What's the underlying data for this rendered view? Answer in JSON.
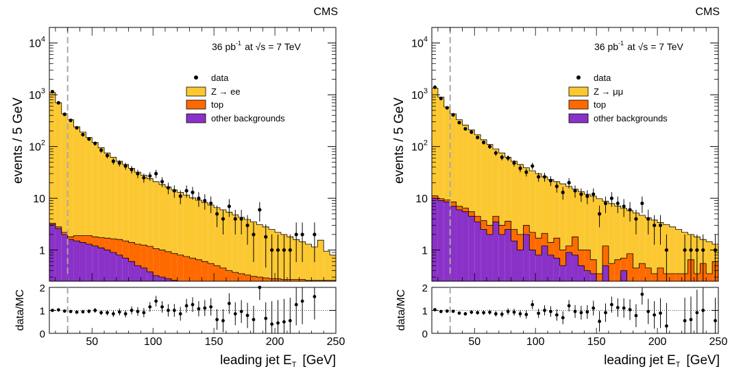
{
  "colors": {
    "signal": "#fcc832",
    "top": "#ff6a00",
    "other": "#8a32c8",
    "data": "#000000",
    "cut": "#a8a8a8"
  },
  "chart_data": [
    {
      "type": "histogram",
      "experiment": "CMS",
      "lumi_text": "36 pb",
      "lumi_sup": "-1",
      "energy_text": "at √s = 7 TeV",
      "ylabel": "events / 5 GeV",
      "xlabel_main": "leading jet E",
      "xlabel_sub": "T",
      "xlabel_unit": "[GeV]",
      "ratio_ylabel": "data/MC",
      "xlim": [
        15,
        250
      ],
      "ylim": [
        0.25,
        20000
      ],
      "yscale": "log",
      "ratio_ylim": [
        0,
        2
      ],
      "cut_x": 30,
      "bin_width": 5,
      "x_ticks": [
        "50",
        "100",
        "150",
        "200",
        "250"
      ],
      "y_ticks": [
        {
          "base": "10",
          "exp": "4"
        },
        {
          "base": "10",
          "exp": "3"
        },
        {
          "base": "10",
          "exp": "2"
        },
        {
          "base": "10",
          "exp": ""
        },
        {
          "base": "1",
          "exp": ""
        }
      ],
      "ratio_ticks": [
        "0",
        "1",
        "2"
      ],
      "legend": {
        "data": "data",
        "signal": "Z → ee",
        "top": "top",
        "other": "other backgrounds"
      },
      "bin_low_edges": [
        15,
        20,
        25,
        30,
        35,
        40,
        45,
        50,
        55,
        60,
        65,
        70,
        75,
        80,
        85,
        90,
        95,
        100,
        105,
        110,
        115,
        120,
        125,
        130,
        135,
        140,
        145,
        150,
        155,
        160,
        165,
        170,
        175,
        180,
        185,
        190,
        195,
        200,
        205,
        210,
        215,
        220,
        225,
        230,
        235,
        240,
        245
      ],
      "other": [
        3.1,
        2.6,
        2.0,
        1.6,
        1.5,
        1.4,
        1.3,
        1.2,
        1.1,
        1.0,
        0.9,
        0.8,
        0.7,
        0.6,
        0.5,
        0.45,
        0.38,
        0.32,
        0.3,
        0.28,
        0.26,
        0.25,
        0.25,
        0.25,
        0.25,
        0.25,
        0.25,
        0.25,
        0.25,
        0.25,
        0.25,
        0.25,
        0.25,
        0.25,
        0.25,
        0.25,
        0.25,
        0.25,
        0.25,
        0.25,
        0.25,
        0.25,
        0.25,
        0.25,
        0.25,
        0.25,
        0.25
      ],
      "top": [
        0.2,
        0.2,
        0.2,
        0.2,
        0.4,
        0.5,
        0.6,
        0.6,
        0.65,
        0.7,
        0.75,
        0.8,
        0.8,
        0.8,
        0.8,
        0.8,
        0.8,
        0.75,
        0.7,
        0.65,
        0.6,
        0.55,
        0.5,
        0.45,
        0.4,
        0.35,
        0.3,
        0.25,
        0.2,
        0.15,
        0.12,
        0.1,
        0.08,
        0.06,
        0.05,
        0.04,
        0.03,
        0.03,
        0.02,
        0.02,
        0.02,
        0.02,
        0.01,
        0.01,
        0.01,
        0.01,
        0.01
      ],
      "total_mc": [
        1100,
        700,
        430,
        330,
        240,
        190,
        150,
        120,
        95,
        75,
        62,
        52,
        45,
        38,
        32,
        28,
        24,
        21,
        18.5,
        16.5,
        14.5,
        13,
        11.5,
        10.2,
        9.2,
        8.3,
        7.4,
        6.6,
        6,
        5.4,
        4.8,
        4.3,
        3.9,
        3.5,
        3.1,
        2.8,
        2.5,
        2.2,
        2.0,
        1.8,
        1.6,
        1.45,
        1.3,
        1.15,
        1.55,
        0.95,
        0.8
      ],
      "data_x": [
        17.5,
        22.5,
        27.5,
        32.5,
        37.5,
        42.5,
        47.5,
        52.5,
        57.5,
        62.5,
        67.5,
        72.5,
        77.5,
        82.5,
        87.5,
        92.5,
        97.5,
        102.5,
        107.5,
        112.5,
        117.5,
        122.5,
        127.5,
        132.5,
        137.5,
        142.5,
        147.5,
        152.5,
        157.5,
        162.5,
        167.5,
        172.5,
        177.5,
        182.5,
        187.5,
        192.5,
        197.5,
        202.5,
        207.5,
        212.5,
        217.5,
        222.5,
        232.5
      ],
      "data_y": [
        1150,
        700,
        420,
        320,
        230,
        170,
        140,
        115,
        85,
        67,
        52,
        48,
        42,
        36,
        30,
        25,
        27,
        30,
        21,
        16,
        14,
        11,
        14,
        13,
        10,
        9,
        8,
        5,
        4,
        7,
        4,
        4,
        3,
        2,
        6,
        1.8,
        1,
        1,
        1,
        1,
        2,
        2,
        2
      ],
      "ratio": [
        1.0,
        1.02,
        0.97,
        0.95,
        0.92,
        0.94,
        0.96,
        1.0,
        0.9,
        0.9,
        0.85,
        0.93,
        0.85,
        1.0,
        0.95,
        0.9,
        1.15,
        1.4,
        1.15,
        1.0,
        1.0,
        0.85,
        1.2,
        1.25,
        1.07,
        1.1,
        1.15,
        0.6,
        0.55,
        1.3,
        0.85,
        0.95,
        0.78,
        0.6,
        2.0,
        0.65,
        0.4,
        0.45,
        0.5,
        0.55,
        1.25,
        1.4,
        1.6
      ],
      "ratio_err": [
        0.03,
        0.04,
        0.05,
        0.06,
        0.07,
        0.08,
        0.09,
        0.1,
        0.11,
        0.12,
        0.14,
        0.15,
        0.16,
        0.17,
        0.19,
        0.2,
        0.21,
        0.23,
        0.25,
        0.27,
        0.28,
        0.3,
        0.3,
        0.32,
        0.33,
        0.35,
        0.38,
        0.45,
        0.5,
        0.45,
        0.5,
        0.5,
        0.55,
        0.6,
        0.55,
        0.7,
        1.0,
        1.0,
        1.0,
        1.0,
        0.9,
        1.0,
        1.0
      ]
    },
    {
      "type": "histogram",
      "experiment": "CMS",
      "lumi_text": "36 pb",
      "lumi_sup": "-1",
      "energy_text": "at √s = 7 TeV",
      "ylabel": "events / 5 GeV",
      "xlabel_main": "leading jet E",
      "xlabel_sub": "T",
      "xlabel_unit": "[GeV]",
      "ratio_ylabel": "data/MC",
      "xlim": [
        15,
        250
      ],
      "ylim": [
        0.25,
        20000
      ],
      "yscale": "log",
      "ratio_ylim": [
        0,
        2
      ],
      "cut_x": 30,
      "bin_width": 5,
      "x_ticks": [
        "50",
        "100",
        "150",
        "200",
        "250"
      ],
      "y_ticks": [
        {
          "base": "10",
          "exp": "4"
        },
        {
          "base": "10",
          "exp": "3"
        },
        {
          "base": "10",
          "exp": "2"
        },
        {
          "base": "10",
          "exp": ""
        },
        {
          "base": "1",
          "exp": ""
        }
      ],
      "ratio_ticks": [
        "0",
        "1",
        "2"
      ],
      "legend": {
        "data": "data",
        "signal": "Z → μμ",
        "top": "top",
        "other": "other backgrounds"
      },
      "bin_low_edges": [
        15,
        20,
        25,
        30,
        35,
        40,
        45,
        50,
        55,
        60,
        65,
        70,
        75,
        80,
        85,
        90,
        95,
        100,
        105,
        110,
        115,
        120,
        125,
        130,
        135,
        140,
        145,
        150,
        155,
        160,
        165,
        170,
        175,
        180,
        185,
        190,
        195,
        200,
        205,
        210,
        215,
        220,
        225,
        230,
        235,
        240,
        245
      ],
      "other": [
        10,
        9,
        8.5,
        7,
        6,
        5.5,
        4.5,
        3.5,
        2.5,
        2.0,
        3.5,
        2.0,
        2.5,
        1.5,
        1.0,
        2.0,
        1.0,
        0.8,
        1.2,
        0.8,
        0.7,
        0.5,
        0.9,
        0.8,
        0.5,
        0.4,
        0.35,
        0.25,
        0.5,
        0.25,
        0.25,
        0.4,
        0.25,
        0.25,
        0.25,
        0.25,
        0.25,
        0.25,
        0.25,
        0.25,
        0.25,
        0.25,
        0.25,
        0.25,
        0.25,
        0.25,
        0.25
      ],
      "top": [
        1.2,
        0.8,
        0.8,
        1.5,
        1.0,
        1.0,
        1.0,
        1.0,
        1.2,
        1.0,
        1.0,
        1.0,
        1.1,
        1.0,
        1.0,
        1.0,
        1.2,
        0.9,
        0.9,
        0.6,
        1.0,
        0.5,
        0.3,
        1.0,
        0.5,
        0.6,
        0.3,
        0.1,
        0.7,
        0.3,
        0.4,
        0.3,
        0.6,
        0.2,
        0.3,
        0.2,
        0.1,
        0.2,
        0.1,
        0.1,
        0.1,
        0.1,
        0.4,
        0.1,
        0.3,
        0.1,
        0.35
      ],
      "total_mc": [
        1350,
        900,
        580,
        430,
        330,
        260,
        210,
        170,
        135,
        110,
        90,
        75,
        62,
        52,
        45,
        39,
        34,
        30,
        26,
        23,
        21,
        19,
        17,
        15,
        13.5,
        12,
        11,
        9.8,
        8.8,
        7.9,
        7.1,
        6.4,
        5.8,
        5.2,
        4.7,
        4.2,
        3.8,
        3.4,
        3.1,
        2.8,
        2.5,
        2.2,
        2.0,
        1.8,
        1.6,
        1.45,
        1.3
      ],
      "data_x": [
        17.5,
        22.5,
        27.5,
        32.5,
        37.5,
        42.5,
        47.5,
        52.5,
        57.5,
        62.5,
        67.5,
        72.5,
        77.5,
        82.5,
        87.5,
        92.5,
        97.5,
        102.5,
        107.5,
        112.5,
        117.5,
        122.5,
        127.5,
        132.5,
        137.5,
        142.5,
        147.5,
        152.5,
        157.5,
        162.5,
        167.5,
        172.5,
        177.5,
        182.5,
        187.5,
        192.5,
        197.5,
        202.5,
        207.5,
        222.5,
        227.5,
        232.5,
        237.5,
        247.5
      ],
      "data_y": [
        1400,
        850,
        560,
        410,
        290,
        220,
        190,
        150,
        120,
        100,
        75,
        62,
        60,
        48,
        38,
        32,
        42,
        26,
        26,
        22,
        17,
        13,
        20,
        14,
        12,
        11,
        12,
        5,
        8,
        10,
        8,
        7,
        6,
        4,
        8,
        4,
        3,
        3,
        1,
        1,
        1,
        1,
        1,
        1
      ],
      "ratio": [
        1.03,
        0.95,
        0.97,
        0.96,
        0.88,
        0.85,
        0.92,
        0.9,
        0.9,
        0.92,
        0.85,
        0.83,
        0.95,
        0.92,
        0.85,
        0.82,
        1.25,
        0.87,
        1.0,
        0.95,
        0.8,
        0.68,
        1.2,
        0.95,
        0.9,
        0.93,
        1.1,
        0.52,
        0.9,
        1.25,
        1.12,
        1.1,
        1.03,
        0.77,
        1.7,
        0.95,
        0.8,
        0.88,
        0.32,
        0.55,
        0.6,
        0.9,
        1.0,
        0.55
      ],
      "ratio_err": [
        0.03,
        0.04,
        0.05,
        0.06,
        0.07,
        0.08,
        0.08,
        0.09,
        0.1,
        0.11,
        0.12,
        0.13,
        0.14,
        0.15,
        0.16,
        0.18,
        0.2,
        0.2,
        0.22,
        0.23,
        0.25,
        0.28,
        0.25,
        0.28,
        0.3,
        0.3,
        0.32,
        0.45,
        0.4,
        0.35,
        0.4,
        0.42,
        0.45,
        0.5,
        0.45,
        0.55,
        0.6,
        0.65,
        1.0,
        1.0,
        1.0,
        1.0,
        1.0,
        1.0
      ]
    }
  ]
}
